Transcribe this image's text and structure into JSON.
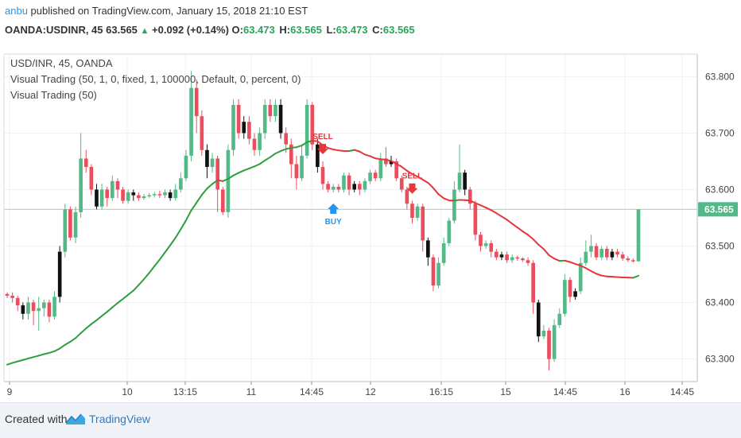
{
  "header": {
    "publisher": "anbu",
    "published_text": "published on TradingView.com, January 15, 2018 21:10 EST",
    "symbol": "OANDA:USDINR, 45",
    "last_price": "63.565",
    "change_arrow": "▲",
    "change": "+0.092 (+0.14%)",
    "ohlc": [
      {
        "label": "O:",
        "value": "63.473"
      },
      {
        "label": "H:",
        "value": "63.565"
      },
      {
        "label": "L:",
        "value": "63.473"
      },
      {
        "label": "C:",
        "value": "63.565"
      }
    ]
  },
  "legend": {
    "line1": "USD/INR, 45, OANDA",
    "line2": "Visual Trading (50, 1, 0, fixed, 1, 100000, Default, 0, percent, 0)",
    "line3": "Visual Trading (50)"
  },
  "footer": {
    "created_with": "Created with",
    "brand": "TradingView"
  },
  "colors": {
    "up": "#53b987",
    "down": "#eb4d5c",
    "ma_up": "#2e9e3e",
    "ma_down": "#e8343a",
    "buy": "#2196f3",
    "sell": "#e8343a",
    "price_tag": "#53b987"
  },
  "chart_data": {
    "type": "candlestick",
    "symbol": "USD/INR",
    "interval": "45",
    "ylim": [
      63.26,
      63.84
    ],
    "y_ticks": [
      "63.800",
      "63.700",
      "63.600",
      "63.500",
      "63.400",
      "63.300"
    ],
    "x_tick_labels": [
      "9",
      "10",
      "13:15",
      "11",
      "14:45",
      "12",
      "16:15",
      "15",
      "14:45",
      "16",
      "14:45"
    ],
    "last_price_label": "63.565",
    "last_price": 63.565,
    "candles": [
      [
        63.415,
        63.412,
        63.418,
        63.408
      ],
      [
        63.412,
        63.408,
        63.418,
        63.4
      ],
      [
        63.408,
        63.395,
        63.412,
        63.385
      ],
      [
        63.395,
        63.38,
        63.4,
        63.37
      ],
      [
        63.38,
        63.4,
        63.41,
        63.37
      ],
      [
        63.4,
        63.385,
        63.405,
        63.36
      ],
      [
        63.385,
        63.39,
        63.41,
        63.35
      ],
      [
        63.39,
        63.4,
        63.405,
        63.375
      ],
      [
        63.4,
        63.375,
        63.405,
        63.365
      ],
      [
        63.375,
        63.41,
        63.42,
        63.37
      ],
      [
        63.41,
        63.49,
        63.5,
        63.4
      ],
      [
        63.49,
        63.565,
        63.575,
        63.48
      ],
      [
        63.565,
        63.515,
        63.57,
        63.51
      ],
      [
        63.515,
        63.56,
        63.57,
        63.505
      ],
      [
        63.56,
        63.655,
        63.7,
        63.55
      ],
      [
        63.655,
        63.64,
        63.67,
        63.63
      ],
      [
        63.64,
        63.6,
        63.645,
        63.59
      ],
      [
        63.6,
        63.57,
        63.61,
        63.565
      ],
      [
        63.57,
        63.6,
        63.61,
        63.565
      ],
      [
        63.6,
        63.585,
        63.605,
        63.57
      ],
      [
        63.585,
        63.615,
        63.625,
        63.58
      ],
      [
        63.615,
        63.6,
        63.62,
        63.585
      ],
      [
        63.6,
        63.58,
        63.605,
        63.575
      ],
      [
        63.58,
        63.595,
        63.6,
        63.575
      ],
      [
        63.595,
        63.59,
        63.6,
        63.58
      ],
      [
        63.59,
        63.585,
        63.595,
        63.58
      ],
      [
        63.585,
        63.588,
        63.592,
        63.582
      ],
      [
        63.588,
        63.59,
        63.594,
        63.585
      ],
      [
        63.59,
        63.592,
        63.596,
        63.586
      ],
      [
        63.592,
        63.59,
        63.598,
        63.585
      ],
      [
        63.59,
        63.595,
        63.6,
        63.585
      ],
      [
        63.595,
        63.585,
        63.6,
        63.58
      ],
      [
        63.585,
        63.6,
        63.61,
        63.58
      ],
      [
        63.6,
        63.62,
        63.63,
        63.595
      ],
      [
        63.62,
        63.66,
        63.67,
        63.615
      ],
      [
        63.66,
        63.78,
        63.81,
        63.65
      ],
      [
        63.78,
        63.73,
        63.795,
        63.7
      ],
      [
        63.73,
        63.67,
        63.74,
        63.66
      ],
      [
        63.67,
        63.64,
        63.68,
        63.62
      ],
      [
        63.64,
        63.655,
        63.665,
        63.63
      ],
      [
        63.655,
        63.6,
        63.66,
        63.56
      ],
      [
        63.6,
        63.56,
        63.605,
        63.555
      ],
      [
        63.56,
        63.67,
        63.68,
        63.55
      ],
      [
        63.67,
        63.75,
        63.76,
        63.66
      ],
      [
        63.75,
        63.7,
        63.76,
        63.69
      ],
      [
        63.7,
        63.72,
        63.73,
        63.69
      ],
      [
        63.72,
        63.69,
        63.73,
        63.68
      ],
      [
        63.69,
        63.67,
        63.7,
        63.66
      ],
      [
        63.67,
        63.7,
        63.71,
        63.66
      ],
      [
        63.7,
        63.75,
        63.76,
        63.69
      ],
      [
        63.75,
        63.73,
        63.76,
        63.72
      ],
      [
        63.73,
        63.75,
        63.76,
        63.72
      ],
      [
        63.75,
        63.7,
        63.76,
        63.69
      ],
      [
        63.7,
        63.68,
        63.71,
        63.665
      ],
      [
        63.68,
        63.645,
        63.69,
        63.62
      ],
      [
        63.645,
        63.62,
        63.66,
        63.6
      ],
      [
        63.62,
        63.66,
        63.68,
        63.615
      ],
      [
        63.66,
        63.75,
        63.76,
        63.655
      ],
      [
        63.75,
        63.68,
        63.755,
        63.67
      ],
      [
        63.68,
        63.64,
        63.69,
        63.63
      ],
      [
        63.64,
        63.61,
        63.65,
        63.6
      ],
      [
        63.61,
        63.6,
        63.615,
        63.595
      ],
      [
        63.6,
        63.605,
        63.61,
        63.595
      ],
      [
        63.605,
        63.6,
        63.61,
        63.595
      ],
      [
        63.6,
        63.625,
        63.63,
        63.595
      ],
      [
        63.625,
        63.6,
        63.63,
        63.59
      ],
      [
        63.6,
        63.61,
        63.615,
        63.595
      ],
      [
        63.61,
        63.6,
        63.615,
        63.59
      ],
      [
        63.6,
        63.615,
        63.62,
        63.595
      ],
      [
        63.615,
        63.63,
        63.635,
        63.61
      ],
      [
        63.63,
        63.62,
        63.635,
        63.615
      ],
      [
        63.62,
        63.655,
        63.665,
        63.615
      ],
      [
        63.655,
        63.645,
        63.675,
        63.64
      ],
      [
        63.645,
        63.65,
        63.66,
        63.64
      ],
      [
        63.65,
        63.62,
        63.655,
        63.615
      ],
      [
        63.62,
        63.6,
        63.625,
        63.595
      ],
      [
        63.6,
        63.575,
        63.605,
        63.565
      ],
      [
        63.575,
        63.55,
        63.58,
        63.54
      ],
      [
        63.55,
        63.57,
        63.575,
        63.545
      ],
      [
        63.57,
        63.51,
        63.575,
        63.49
      ],
      [
        63.51,
        63.48,
        63.515,
        63.465
      ],
      [
        63.48,
        63.43,
        63.485,
        63.42
      ],
      [
        63.43,
        63.47,
        63.48,
        63.425
      ],
      [
        63.47,
        63.505,
        63.515,
        63.465
      ],
      [
        63.505,
        63.545,
        63.55,
        63.5
      ],
      [
        63.545,
        63.6,
        63.615,
        63.54
      ],
      [
        63.6,
        63.63,
        63.68,
        63.595
      ],
      [
        63.63,
        63.6,
        63.635,
        63.59
      ],
      [
        63.6,
        63.575,
        63.605,
        63.565
      ],
      [
        63.575,
        63.52,
        63.58,
        63.51
      ],
      [
        63.52,
        63.5,
        63.525,
        63.49
      ],
      [
        63.5,
        63.505,
        63.51,
        63.495
      ],
      [
        63.505,
        63.49,
        63.51,
        63.48
      ],
      [
        63.49,
        63.48,
        63.495,
        63.475
      ],
      [
        63.48,
        63.485,
        63.49,
        63.475
      ],
      [
        63.485,
        63.475,
        63.49,
        63.47
      ],
      [
        63.475,
        63.48,
        63.485,
        63.47
      ],
      [
        63.48,
        63.478,
        63.483,
        63.474
      ],
      [
        63.478,
        63.475,
        63.48,
        63.472
      ],
      [
        63.475,
        63.47,
        63.48,
        63.465
      ],
      [
        63.47,
        63.4,
        63.475,
        63.38
      ],
      [
        63.4,
        63.34,
        63.405,
        63.33
      ],
      [
        63.34,
        63.35,
        63.36,
        63.335
      ],
      [
        63.35,
        63.3,
        63.355,
        63.28
      ],
      [
        63.3,
        63.36,
        63.37,
        63.295
      ],
      [
        63.36,
        63.38,
        63.39,
        63.355
      ],
      [
        63.38,
        63.44,
        63.45,
        63.375
      ],
      [
        63.44,
        63.41,
        63.445,
        63.4
      ],
      [
        63.41,
        63.42,
        63.425,
        63.405
      ],
      [
        63.42,
        63.47,
        63.48,
        63.415
      ],
      [
        63.47,
        63.49,
        63.51,
        63.465
      ],
      [
        63.49,
        63.5,
        63.52,
        63.48
      ],
      [
        63.5,
        63.48,
        63.505,
        63.475
      ],
      [
        63.48,
        63.495,
        63.5,
        63.475
      ],
      [
        63.495,
        63.48,
        63.5,
        63.475
      ],
      [
        63.48,
        63.49,
        63.495,
        63.475
      ],
      [
        63.49,
        63.485,
        63.495,
        63.48
      ],
      [
        63.485,
        63.478,
        63.49,
        63.474
      ],
      [
        63.478,
        63.475,
        63.482,
        63.472
      ],
      [
        63.475,
        63.473,
        63.478,
        63.471
      ],
      [
        63.473,
        63.565,
        63.565,
        63.473
      ]
    ],
    "signals": [
      {
        "label": "SELL",
        "type": "sell",
        "index": 60
      },
      {
        "label": "BUY",
        "type": "buy",
        "index": 62
      },
      {
        "label": "SELL",
        "type": "sell",
        "index": 77
      }
    ]
  }
}
